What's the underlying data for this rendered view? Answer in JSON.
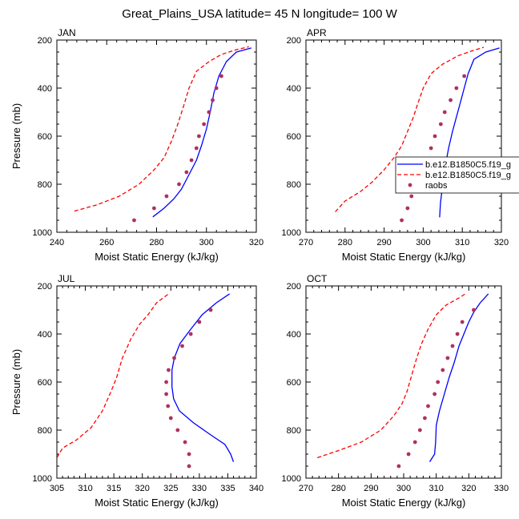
{
  "figure": {
    "title": "Great_Plains_USA  latitude= 45 N longitude= 100 W"
  },
  "chart_data": [
    {
      "type": "line",
      "title": "JAN",
      "xlabel": "Moist Static Energy (kJ/kg)",
      "ylabel": "Pressure (mb)",
      "xlim": [
        240,
        320
      ],
      "ylim": [
        1000,
        200
      ],
      "xticks": [
        240,
        260,
        280,
        300,
        320
      ],
      "yticks": [
        200,
        400,
        600,
        800,
        1000
      ],
      "series": [
        {
          "name": "b.e12.B1850C5.f19_g",
          "color": "#0000ff",
          "dash": "solid",
          "points": [
            [
              278.5,
              936
            ],
            [
              283,
              900
            ],
            [
              287,
              860
            ],
            [
              290,
              820
            ],
            [
              293,
              760
            ],
            [
              296,
              700
            ],
            [
              298,
              640
            ],
            [
              300,
              570
            ],
            [
              301.5,
              500
            ],
            [
              303,
              420
            ],
            [
              305,
              350
            ],
            [
              308,
              290
            ],
            [
              312,
              250
            ],
            [
              318,
              233
            ]
          ]
        },
        {
          "name": "b.e12.B1850C5.f19_g",
          "color": "#ff0000",
          "dash": "dashed",
          "points": [
            [
              247,
              912
            ],
            [
              256,
              886
            ],
            [
              265,
              850
            ],
            [
              273,
              800
            ],
            [
              279,
              740
            ],
            [
              283,
              690
            ],
            [
              286,
              620
            ],
            [
              288.5,
              550
            ],
            [
              291,
              470
            ],
            [
              293,
              400
            ],
            [
              296,
              330
            ],
            [
              301,
              290
            ],
            [
              306,
              260
            ],
            [
              312,
              240
            ],
            [
              317,
              228
            ]
          ]
        },
        {
          "name": "raobs",
          "color": "#b03060",
          "dash": "dots",
          "points": [
            [
              271,
              950
            ],
            [
              279,
              900
            ],
            [
              284,
              850
            ],
            [
              289,
              800
            ],
            [
              292,
              750
            ],
            [
              294,
              700
            ],
            [
              296,
              650
            ],
            [
              297,
              600
            ],
            [
              299,
              550
            ],
            [
              301,
              500
            ],
            [
              302.5,
              450
            ],
            [
              304,
              400
            ],
            [
              306,
              350
            ]
          ]
        }
      ]
    },
    {
      "type": "line",
      "title": "APR",
      "xlabel": "Moist Static Energy (kJ/kg)",
      "ylabel": "",
      "xlim": [
        270,
        320
      ],
      "ylim": [
        1000,
        200
      ],
      "xticks": [
        270,
        280,
        290,
        300,
        310,
        320
      ],
      "yticks": [
        200,
        400,
        600,
        800,
        1000
      ],
      "legend_loc": "center-right",
      "legend": [
        "b.e12.B1850C5.f19_g",
        "b.e12.B1850C5.f19_g",
        "raobs"
      ],
      "series": [
        {
          "name": "b.e12.B1850C5.f19_g",
          "color": "#0000ff",
          "dash": "solid",
          "points": [
            [
              304.2,
              938
            ],
            [
              304.4,
              880
            ],
            [
              305,
              800
            ],
            [
              305.6,
              730
            ],
            [
              306.5,
              650
            ],
            [
              307.5,
              580
            ],
            [
              308.5,
              520
            ],
            [
              309.5,
              460
            ],
            [
              310.5,
              400
            ],
            [
              311.5,
              340
            ],
            [
              313,
              280
            ],
            [
              316,
              250
            ],
            [
              319.5,
              233
            ]
          ]
        },
        {
          "name": "b.e12.B1850C5.f19_g",
          "color": "#ff0000",
          "dash": "dashed",
          "points": [
            [
              277.5,
              915
            ],
            [
              280,
              870
            ],
            [
              284,
              830
            ],
            [
              287,
              790
            ],
            [
              290,
              740
            ],
            [
              292.5,
              690
            ],
            [
              294.5,
              640
            ],
            [
              296,
              580
            ],
            [
              297.5,
              520
            ],
            [
              298.5,
              470
            ],
            [
              300,
              400
            ],
            [
              302,
              340
            ],
            [
              305,
              300
            ],
            [
              309,
              265
            ],
            [
              312.5,
              245
            ],
            [
              315.5,
              230
            ]
          ]
        },
        {
          "name": "raobs",
          "color": "#b03060",
          "dash": "dots",
          "points": [
            [
              294.5,
              950
            ],
            [
              296,
              900
            ],
            [
              297,
              850
            ],
            [
              298,
              800
            ],
            [
              299.5,
              750
            ],
            [
              300.5,
              700
            ],
            [
              302,
              650
            ],
            [
              303,
              600
            ],
            [
              304.5,
              550
            ],
            [
              305.5,
              500
            ],
            [
              307,
              450
            ],
            [
              308.5,
              400
            ],
            [
              310.5,
              350
            ]
          ]
        }
      ]
    },
    {
      "type": "line",
      "title": "JUL",
      "xlabel": "Moist Static Energy (kJ/kg)",
      "ylabel": "Pressure (mb)",
      "xlim": [
        305,
        340
      ],
      "ylim": [
        1000,
        200
      ],
      "xticks": [
        305,
        310,
        315,
        320,
        325,
        330,
        335,
        340
      ],
      "yticks": [
        200,
        400,
        600,
        800,
        1000
      ],
      "series": [
        {
          "name": "b.e12.B1850C5.f19_g",
          "color": "#0000ff",
          "dash": "solid",
          "points": [
            [
              336,
              932
            ],
            [
              335.5,
              900
            ],
            [
              334.5,
              860
            ],
            [
              332,
              820
            ],
            [
              329,
              770
            ],
            [
              326.5,
              720
            ],
            [
              325.5,
              670
            ],
            [
              325.2,
              620
            ],
            [
              325.2,
              550
            ],
            [
              325.6,
              500
            ],
            [
              326.6,
              440
            ],
            [
              328.5,
              380
            ],
            [
              330.5,
              320
            ],
            [
              333,
              270
            ],
            [
              335.3,
              233
            ]
          ]
        },
        {
          "name": "b.e12.B1850C5.f19_g",
          "color": "#ff0000",
          "dash": "dashed",
          "points": [
            [
              305,
              915
            ],
            [
              306,
              875
            ],
            [
              308.5,
              840
            ],
            [
              311,
              790
            ],
            [
              313,
              720
            ],
            [
              314.5,
              640
            ],
            [
              315.5,
              580
            ],
            [
              316.5,
              500
            ],
            [
              318,
              420
            ],
            [
              319.5,
              360
            ],
            [
              321,
              320
            ],
            [
              322.5,
              270
            ],
            [
              324.5,
              235
            ]
          ]
        },
        {
          "name": "raobs",
          "color": "#b03060",
          "dash": "dots",
          "points": [
            [
              328.2,
              950
            ],
            [
              328.2,
              900
            ],
            [
              327.5,
              850
            ],
            [
              326.2,
              800
            ],
            [
              325,
              750
            ],
            [
              324.5,
              700
            ],
            [
              324.2,
              650
            ],
            [
              324.2,
              600
            ],
            [
              324.6,
              550
            ],
            [
              325.6,
              500
            ],
            [
              327,
              450
            ],
            [
              328.5,
              400
            ],
            [
              330,
              350
            ],
            [
              332,
              300
            ]
          ]
        }
      ]
    },
    {
      "type": "line",
      "title": "OCT",
      "xlabel": "Moist Static Energy (kJ/kg)",
      "ylabel": "",
      "xlim": [
        270,
        330
      ],
      "ylim": [
        1000,
        200
      ],
      "xticks": [
        270,
        280,
        290,
        300,
        310,
        320,
        330
      ],
      "yticks": [
        200,
        400,
        600,
        800,
        1000
      ],
      "series": [
        {
          "name": "b.e12.B1850C5.f19_g",
          "color": "#0000ff",
          "dash": "solid",
          "points": [
            [
              308,
              932
            ],
            [
              309.5,
              900
            ],
            [
              309.8,
              850
            ],
            [
              310,
              780
            ],
            [
              311,
              720
            ],
            [
              312.5,
              650
            ],
            [
              314,
              580
            ],
            [
              315.5,
              520
            ],
            [
              317,
              450
            ],
            [
              318.5,
              400
            ],
            [
              320,
              350
            ],
            [
              321.5,
              310
            ],
            [
              323.5,
              270
            ],
            [
              326,
              233
            ]
          ]
        },
        {
          "name": "b.e12.B1850C5.f19_g",
          "color": "#ff0000",
          "dash": "dashed",
          "points": [
            [
              273.5,
              915
            ],
            [
              280,
              885
            ],
            [
              287,
              850
            ],
            [
              293,
              800
            ],
            [
              297,
              740
            ],
            [
              299.5,
              690
            ],
            [
              301,
              640
            ],
            [
              302.5,
              570
            ],
            [
              304,
              500
            ],
            [
              305.5,
              440
            ],
            [
              307.5,
              380
            ],
            [
              310,
              320
            ],
            [
              313,
              280
            ],
            [
              317,
              250
            ],
            [
              319,
              232
            ]
          ]
        },
        {
          "name": "raobs",
          "color": "#b03060",
          "dash": "dots",
          "points": [
            [
              298.5,
              950
            ],
            [
              301.5,
              900
            ],
            [
              303.5,
              850
            ],
            [
              305,
              800
            ],
            [
              306.5,
              750
            ],
            [
              307.5,
              700
            ],
            [
              309.5,
              650
            ],
            [
              310.5,
              600
            ],
            [
              312,
              550
            ],
            [
              313.5,
              500
            ],
            [
              315,
              450
            ],
            [
              316.5,
              400
            ],
            [
              318,
              350
            ],
            [
              321.5,
              300
            ]
          ]
        }
      ]
    }
  ]
}
